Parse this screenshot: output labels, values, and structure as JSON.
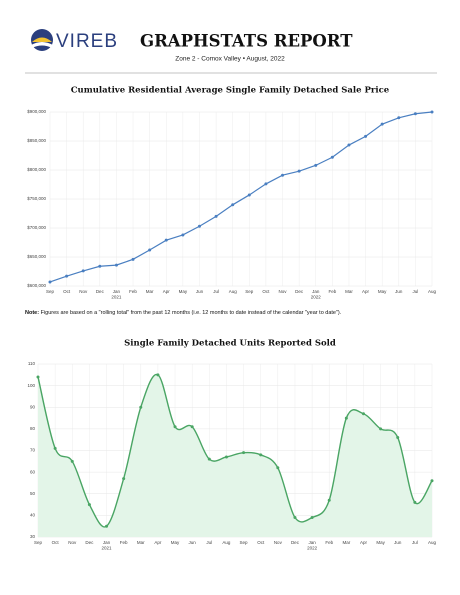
{
  "header": {
    "logo_text": "VIREB",
    "title": "GRAPHSTATS REPORT",
    "subtitle": "Zone 2 - Comox Valley • August, 2022"
  },
  "note": {
    "label": "Note:",
    "text": "Figures are based on a \"rolling total\" from the past 12 months (i.e. 12 months to date instead of the calendar \"year to date\")."
  },
  "chart_data": [
    {
      "type": "line",
      "title": "Cumulative Residential Average Single Family Detached Sale Price",
      "categories": [
        "Sep",
        "Oct",
        "Nov",
        "Dec",
        "Jan",
        "Feb",
        "Mar",
        "Apr",
        "May",
        "Jun",
        "Jul",
        "Aug",
        "Sep",
        "Oct",
        "Nov",
        "Dec",
        "Jan",
        "Feb",
        "Mar",
        "Apr",
        "May",
        "Jun",
        "Jul",
        "Aug"
      ],
      "year_labels": [
        null,
        null,
        null,
        null,
        "2021",
        null,
        null,
        null,
        null,
        null,
        null,
        null,
        null,
        null,
        null,
        null,
        "2022",
        null,
        null,
        null,
        null,
        null,
        null,
        null
      ],
      "series": [
        {
          "color": "#4a7fc1",
          "values": [
            607000,
            617000,
            626000,
            634000,
            636000,
            646000,
            662000,
            679000,
            688000,
            703000,
            720000,
            740000,
            757000,
            776000,
            791000,
            798000,
            808000,
            822000,
            843000,
            858000,
            879000,
            890000,
            897000,
            900000
          ]
        }
      ],
      "smooth": false,
      "area": false,
      "ylim": [
        600000,
        900000
      ],
      "yticks": [
        {
          "value": 600000,
          "label": "$600,000"
        },
        {
          "value": 650000,
          "label": "$650,000"
        },
        {
          "value": 700000,
          "label": "$700,000"
        },
        {
          "value": 750000,
          "label": "$750,000"
        },
        {
          "value": 800000,
          "label": "$800,000"
        },
        {
          "value": 850000,
          "label": "$850,000"
        },
        {
          "value": 900000,
          "label": "$900,000"
        }
      ],
      "grid": true
    },
    {
      "type": "line",
      "title": "Single Family Detached Units Reported Sold",
      "categories": [
        "Sep",
        "Oct",
        "Nov",
        "Dec",
        "Jan",
        "Feb",
        "Mar",
        "Apr",
        "May",
        "Jun",
        "Jul",
        "Aug",
        "Sep",
        "Oct",
        "Nov",
        "Dec",
        "Jan",
        "Feb",
        "Mar",
        "Apr",
        "May",
        "Jun",
        "Jul",
        "Aug"
      ],
      "year_labels": [
        null,
        null,
        null,
        null,
        "2021",
        null,
        null,
        null,
        null,
        null,
        null,
        null,
        null,
        null,
        null,
        null,
        "2022",
        null,
        null,
        null,
        null,
        null,
        null,
        null
      ],
      "series": [
        {
          "color": "#4aa564",
          "fill_color": "#e3f5e8",
          "values": [
            104,
            71,
            65,
            45,
            35,
            57,
            90,
            105,
            81,
            81,
            66,
            67,
            69,
            68,
            62,
            39,
            39,
            47,
            85,
            87,
            80,
            76,
            46,
            56
          ]
        }
      ],
      "smooth": true,
      "area": true,
      "ylim": [
        30,
        110
      ],
      "yticks": [
        30,
        40,
        50,
        60,
        70,
        80,
        90,
        100,
        110
      ],
      "grid": true
    }
  ]
}
